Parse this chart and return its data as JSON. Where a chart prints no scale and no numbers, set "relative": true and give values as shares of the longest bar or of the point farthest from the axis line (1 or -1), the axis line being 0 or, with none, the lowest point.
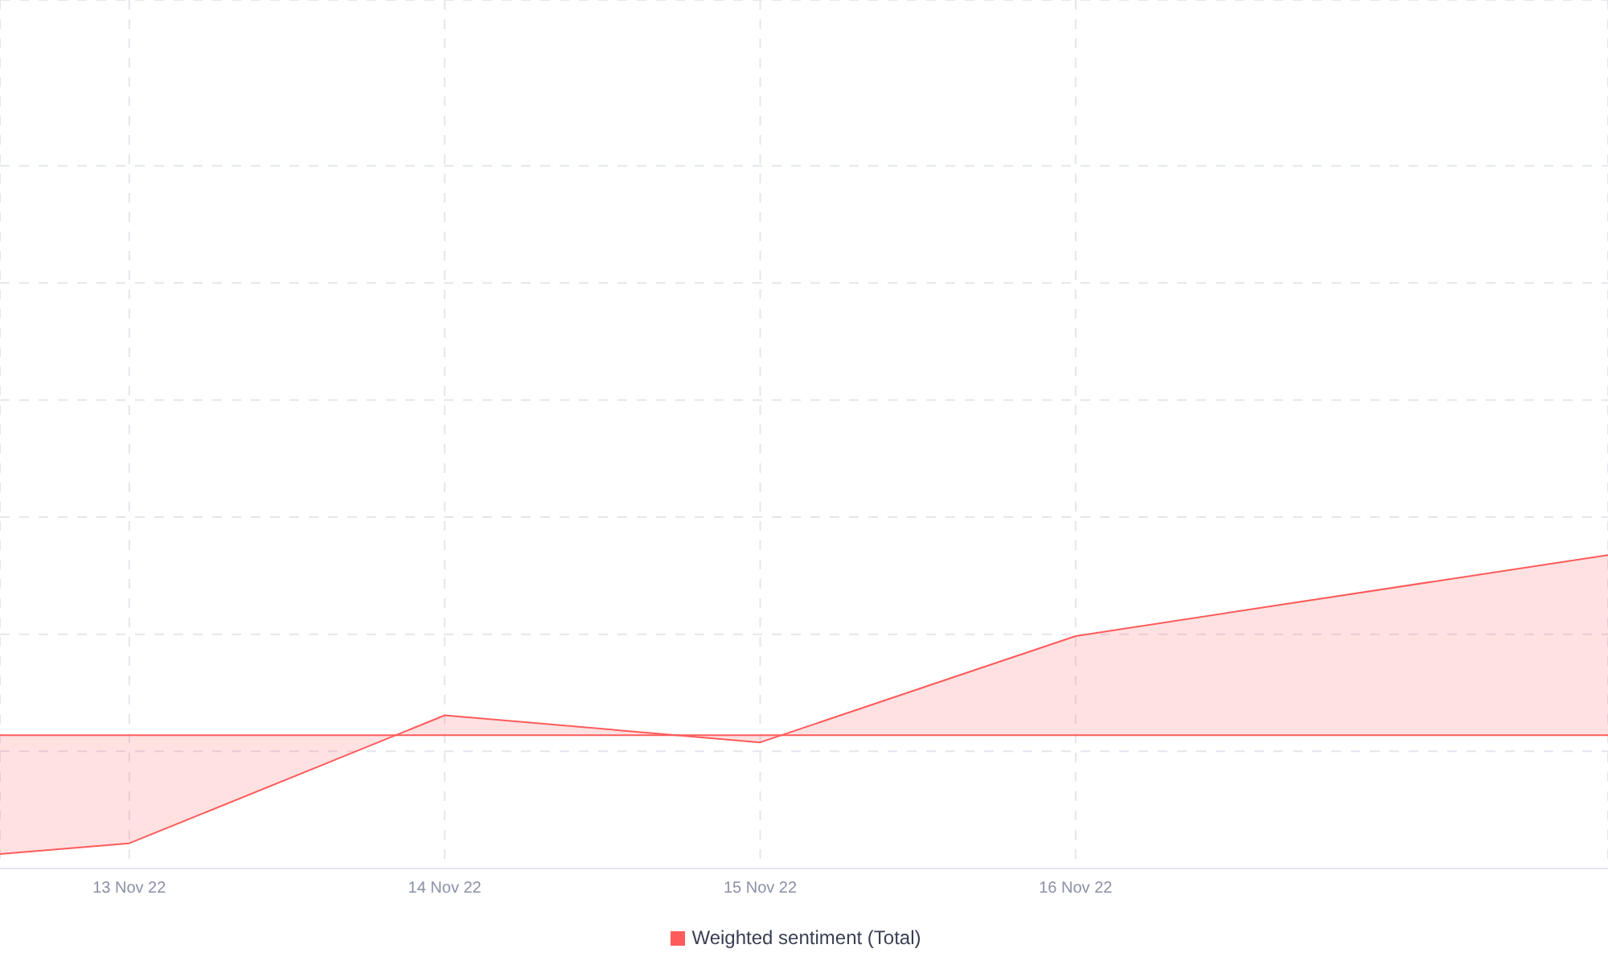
{
  "chart_data": {
    "type": "area",
    "relative": true,
    "x": [
      "--11-12T14:10",
      "--11-13",
      "--11-14",
      "--11-15",
      "--11-16",
      "--11-17T16:30"
    ],
    "series": [
      {
        "name": "Weighted sentiment (Total)",
        "color": "#ff5b5b",
        "values": [
          -0.66,
          -0.6,
          0.11,
          -0.04,
          0.55,
          1.0
        ]
      }
    ],
    "xlim": [
      "--11-12T14:10",
      "--11-17T16:30"
    ],
    "xticks": [
      {
        "value": "--11-13",
        "label": "13 Nov 22"
      },
      {
        "value": "--11-14",
        "label": "14 Nov 22"
      },
      {
        "value": "--11-15",
        "label": "15 Nov 22"
      },
      {
        "value": "--11-16",
        "label": "16 Nov 22"
      }
    ],
    "ref_lines": [
      {
        "axis": "y",
        "value": 0,
        "color": "#ff5b5b"
      }
    ],
    "grid": true,
    "legend": "bottom"
  }
}
